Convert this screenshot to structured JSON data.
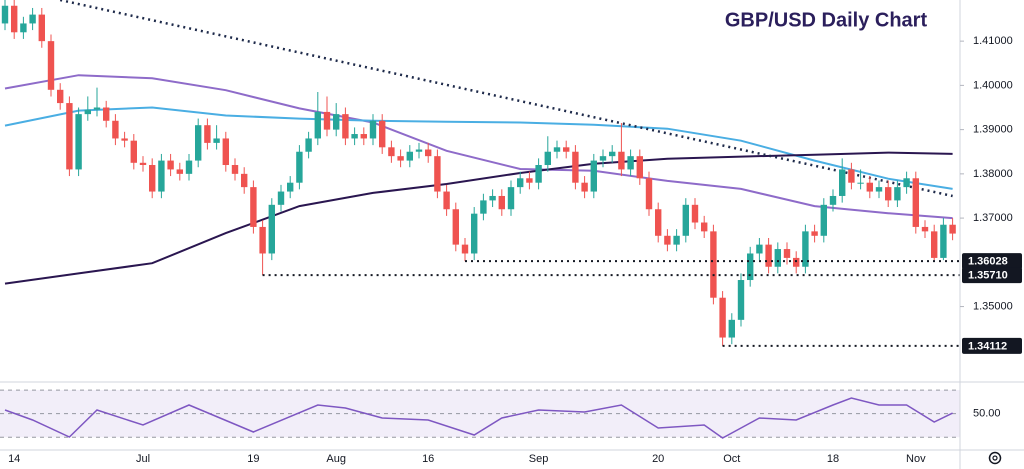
{
  "chart_data": [
    {
      "type": "candlestick",
      "title": "GBP/USD Daily Chart",
      "categories": [
        null,
        "14",
        null,
        null,
        null,
        null,
        null,
        null,
        null,
        null,
        null,
        null,
        null,
        null,
        null,
        "Jul",
        null,
        null,
        null,
        null,
        null,
        null,
        null,
        null,
        null,
        null,
        null,
        "19",
        null,
        null,
        null,
        null,
        null,
        null,
        null,
        null,
        "Aug",
        null,
        null,
        null,
        null,
        null,
        null,
        null,
        null,
        null,
        "16",
        null,
        null,
        null,
        null,
        null,
        null,
        null,
        null,
        null,
        null,
        null,
        "Sep",
        null,
        null,
        null,
        null,
        null,
        null,
        null,
        null,
        null,
        null,
        null,
        null,
        "20",
        null,
        null,
        null,
        null,
        null,
        null,
        null,
        "Oct",
        null,
        null,
        null,
        null,
        null,
        null,
        null,
        null,
        null,
        null,
        "18",
        null,
        null,
        null,
        null,
        null,
        null,
        null,
        null,
        "Nov",
        null,
        null,
        null,
        null
      ],
      "series": [
        {
          "up_color": "#26a69a",
          "down_color": "#ef5350",
          "open": [
            1.414,
            1.418,
            1.412,
            1.414,
            1.416,
            1.41,
            1.399,
            1.396,
            1.381,
            1.3935,
            1.3945,
            1.395,
            1.392,
            1.388,
            1.3875,
            1.3825,
            1.382,
            1.376,
            1.383,
            1.381,
            1.38,
            1.383,
            1.391,
            1.387,
            1.388,
            1.382,
            1.38,
            1.377,
            1.368,
            1.362,
            1.373,
            1.376,
            1.378,
            1.385,
            1.388,
            1.394,
            1.39,
            1.3935,
            1.388,
            1.389,
            1.388,
            1.392,
            1.386,
            1.384,
            1.383,
            1.385,
            1.3855,
            1.384,
            1.376,
            1.372,
            1.364,
            1.362,
            1.371,
            1.374,
            1.375,
            1.372,
            1.377,
            1.379,
            1.378,
            1.382,
            1.385,
            1.386,
            1.385,
            1.378,
            1.376,
            1.383,
            1.384,
            1.385,
            1.381,
            1.384,
            1.379,
            1.372,
            1.366,
            1.364,
            1.366,
            1.373,
            1.369,
            1.367,
            1.352,
            1.343,
            1.347,
            1.356,
            1.362,
            1.364,
            1.359,
            1.363,
            1.361,
            1.359,
            1.367,
            1.366,
            1.373,
            1.375,
            1.381,
            1.378,
            1.378,
            1.376,
            1.377,
            1.374,
            1.377,
            1.379,
            1.368,
            1.367,
            1.361,
            1.3685
          ],
          "high": [
            1.42,
            1.4195,
            1.4155,
            1.4175,
            1.4175,
            1.4115,
            1.4005,
            1.3975,
            1.395,
            1.3975,
            1.3995,
            1.3965,
            1.3935,
            1.3895,
            1.389,
            1.384,
            1.3835,
            1.3845,
            1.3845,
            1.3825,
            1.3845,
            1.3925,
            1.3925,
            1.391,
            1.3895,
            1.3835,
            1.3815,
            1.3785,
            1.3695,
            1.3745,
            1.3775,
            1.3795,
            1.3865,
            1.3895,
            1.3985,
            1.3975,
            1.396,
            1.395,
            1.3905,
            1.3905,
            1.3935,
            1.3935,
            1.3875,
            1.3855,
            1.3865,
            1.387,
            1.387,
            1.3855,
            1.3775,
            1.3735,
            1.3655,
            1.3725,
            1.3755,
            1.3765,
            1.3765,
            1.3785,
            1.3805,
            1.3805,
            1.3835,
            1.3885,
            1.3875,
            1.3875,
            1.3865,
            1.3795,
            1.3845,
            1.3855,
            1.3865,
            1.3915,
            1.3855,
            1.3855,
            1.3805,
            1.3735,
            1.3675,
            1.3675,
            1.3745,
            1.3745,
            1.3705,
            1.3685,
            1.3535,
            1.3485,
            1.3575,
            1.3635,
            1.3655,
            1.3655,
            1.3645,
            1.3645,
            1.3625,
            1.3685,
            1.3685,
            1.3745,
            1.3765,
            1.3835,
            1.3825,
            1.381,
            1.3795,
            1.3785,
            1.3785,
            1.3785,
            1.3805,
            1.3805,
            1.3695,
            1.3685,
            1.37,
            1.37
          ],
          "low": [
            1.4125,
            1.4105,
            1.4105,
            1.4125,
            1.4085,
            1.3975,
            1.3945,
            1.3795,
            1.3795,
            1.392,
            1.393,
            1.3905,
            1.3865,
            1.386,
            1.381,
            1.3805,
            1.3745,
            1.3745,
            1.3795,
            1.3785,
            1.3785,
            1.3815,
            1.3855,
            1.3855,
            1.3805,
            1.3785,
            1.3755,
            1.3665,
            1.3571,
            1.3605,
            1.3715,
            1.3745,
            1.3765,
            1.3835,
            1.3865,
            1.3885,
            1.3885,
            1.3865,
            1.3865,
            1.3865,
            1.3865,
            1.3845,
            1.3825,
            1.3815,
            1.3815,
            1.3835,
            1.3825,
            1.3745,
            1.3705,
            1.3625,
            1.36028,
            1.3605,
            1.3695,
            1.3725,
            1.3705,
            1.3705,
            1.3755,
            1.3765,
            1.3765,
            1.3805,
            1.3835,
            1.3835,
            1.3765,
            1.3745,
            1.3745,
            1.3815,
            1.3825,
            1.3795,
            1.3795,
            1.3775,
            1.3705,
            1.3645,
            1.3625,
            1.3625,
            1.3645,
            1.3675,
            1.3655,
            1.3505,
            1.34112,
            1.3415,
            1.3455,
            1.3545,
            1.3605,
            1.3575,
            1.3575,
            1.3595,
            1.3575,
            1.3575,
            1.3645,
            1.3645,
            1.3715,
            1.3735,
            1.3765,
            1.3765,
            1.3745,
            1.3745,
            1.3725,
            1.3725,
            1.3755,
            1.3665,
            1.3655,
            1.3605,
            1.3605,
            1.365
          ],
          "close": [
            1.418,
            1.412,
            1.414,
            1.416,
            1.41,
            1.399,
            1.396,
            1.381,
            1.3935,
            1.3945,
            1.395,
            1.392,
            1.388,
            1.3875,
            1.3825,
            1.382,
            1.376,
            1.383,
            1.381,
            1.38,
            1.383,
            1.391,
            1.387,
            1.388,
            1.382,
            1.38,
            1.377,
            1.368,
            1.362,
            1.373,
            1.376,
            1.378,
            1.385,
            1.388,
            1.394,
            1.39,
            1.3935,
            1.388,
            1.389,
            1.388,
            1.392,
            1.386,
            1.384,
            1.383,
            1.385,
            1.3855,
            1.384,
            1.376,
            1.372,
            1.364,
            1.362,
            1.371,
            1.374,
            1.375,
            1.372,
            1.377,
            1.379,
            1.378,
            1.382,
            1.385,
            1.386,
            1.385,
            1.378,
            1.376,
            1.383,
            1.384,
            1.385,
            1.381,
            1.384,
            1.379,
            1.372,
            1.366,
            1.364,
            1.366,
            1.373,
            1.369,
            1.367,
            1.352,
            1.343,
            1.347,
            1.356,
            1.362,
            1.364,
            1.359,
            1.363,
            1.361,
            1.359,
            1.367,
            1.366,
            1.373,
            1.375,
            1.381,
            1.378,
            1.378,
            1.376,
            1.377,
            1.374,
            1.377,
            1.379,
            1.368,
            1.367,
            1.361,
            1.3685,
            1.3665
          ]
        }
      ],
      "lines": [
        {
          "color": "#8e6bc9",
          "x": [
            0,
            8,
            16,
            24,
            32,
            40,
            48,
            56,
            64,
            72,
            80,
            88,
            96,
            103
          ],
          "values": [
            1.3993,
            1.4023,
            1.4016,
            1.3989,
            1.3948,
            1.3916,
            1.3852,
            1.3811,
            1.3807,
            1.3784,
            1.3766,
            1.3727,
            1.3711,
            1.37
          ]
        },
        {
          "color": "#4aaee3",
          "x": [
            0,
            8,
            16,
            24,
            32,
            40,
            48,
            56,
            64,
            72,
            80,
            88,
            96,
            103
          ],
          "values": [
            1.3909,
            1.3943,
            1.395,
            1.3932,
            1.3925,
            1.392,
            1.3918,
            1.3916,
            1.3911,
            1.3902,
            1.3875,
            1.383,
            1.3789,
            1.3766
          ]
        },
        {
          "color": "#2a1650",
          "x": [
            0,
            8,
            16,
            24,
            32,
            40,
            48,
            56,
            64,
            72,
            80,
            88,
            96,
            103
          ],
          "values": [
            1.3552,
            1.3575,
            1.3598,
            1.3666,
            1.3727,
            1.3757,
            1.3777,
            1.3802,
            1.3823,
            1.3834,
            1.3839,
            1.3843,
            1.3848,
            1.3845
          ]
        }
      ],
      "trendline": {
        "color": "#1e2a4a",
        "x": [
          6,
          103
        ],
        "values": [
          1.4193,
          1.375
        ]
      },
      "levels": [
        1.36028,
        {
          "value": 1.3571,
          "label": "1.35710"
        },
        1.34112
      ],
      "ylim": [
        1.3334,
        1.4193
      ],
      "yticks": [
        {
          "value": 1.35,
          "label": "1.35000"
        },
        {
          "value": 1.37,
          "label": "1.37000"
        },
        {
          "value": 1.38,
          "label": "1.38000"
        },
        {
          "value": 1.39,
          "label": "1.39000"
        },
        {
          "value": 1.4,
          "label": "1.40000"
        },
        {
          "value": 1.41,
          "label": "1.41000"
        }
      ],
      "grid": false
    },
    {
      "type": "line",
      "color": "#7e57c2",
      "x": [
        0,
        3,
        7,
        10,
        15,
        20,
        27,
        34,
        37,
        41,
        46,
        51,
        54,
        58,
        63,
        67,
        71,
        76,
        78,
        82,
        86,
        90,
        92,
        95,
        98,
        101,
        103
      ],
      "values": [
        53.1,
        44.6,
        30.2,
        53.1,
        40.4,
        57.3,
        34.4,
        57.3,
        54.8,
        46.3,
        44.6,
        31.9,
        46.3,
        53.1,
        51.4,
        57.3,
        37.8,
        40.4,
        29.3,
        46.3,
        44.6,
        57.3,
        63.3,
        57.3,
        57.3,
        42.9,
        50.5
      ],
      "band": [
        30,
        70
      ],
      "ylim": [
        20,
        76
      ],
      "yticks": [
        {
          "value": 50,
          "label": "50.00"
        }
      ]
    }
  ]
}
